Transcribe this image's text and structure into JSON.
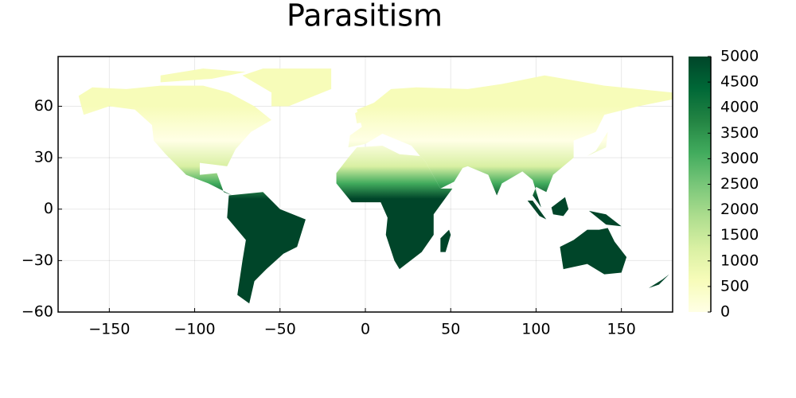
{
  "chart_data": {
    "type": "heatmap",
    "title": "Parasitism",
    "xlim": [
      -180,
      180
    ],
    "xticks": [
      {
        "value": -150,
        "label": "−150"
      },
      {
        "value": -100,
        "label": "−100"
      },
      {
        "value": -50,
        "label": "−50"
      },
      0,
      50,
      100,
      150
    ],
    "ylim": [
      -60,
      89
    ],
    "yticks": [
      {
        "value": -60,
        "label": "−60"
      },
      {
        "value": -30,
        "label": "−30"
      },
      0,
      30,
      60
    ],
    "grid": true,
    "colorbar": {
      "clim": [
        0,
        5000
      ],
      "ticks": [
        0,
        500,
        1000,
        1500,
        2000,
        2500,
        3000,
        3500,
        4000,
        4500,
        5000
      ],
      "colormap": [
        "#ffffe5",
        "#f7fcb9",
        "#d9f0a3",
        "#addd8e",
        "#78c679",
        "#41ab5d",
        "#238443",
        "#006837",
        "#004529"
      ]
    }
  }
}
